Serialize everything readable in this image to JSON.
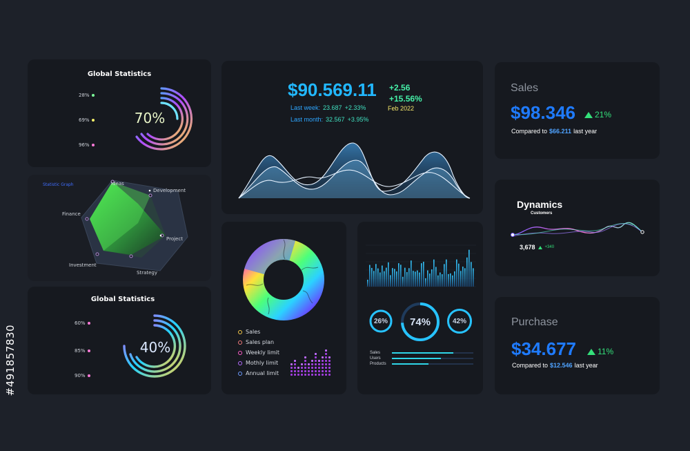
{
  "watermark_id": "#491857830",
  "global_stats_1": {
    "title": "Global Statistics",
    "percent": "70%",
    "legend": [
      {
        "label": "28%",
        "color": "#7dff9a"
      },
      {
        "label": "69%",
        "color": "#f4f06a"
      },
      {
        "label": "96%",
        "color": "#ff7ad9"
      }
    ]
  },
  "radar": {
    "title": "Statistic Graph",
    "axes": [
      "Ideas",
      "Development",
      "Project",
      "Strategy",
      "Investment",
      "Finance"
    ]
  },
  "global_stats_2": {
    "title": "Global Statistics",
    "percent": "40%",
    "legend": [
      {
        "label": "60%",
        "color": "#ff7ad9"
      },
      {
        "label": "85%",
        "color": "#ff7ad9"
      },
      {
        "label": "90%",
        "color": "#ff7ad9"
      }
    ]
  },
  "wave": {
    "amount": "$90.569.11",
    "change_1": "+2.56",
    "change_2": "+15.56%",
    "date": "Feb 2022",
    "last_week_label": "Last week:",
    "last_week_value": "23.687",
    "last_week_change": "+2.33%",
    "last_month_label": "Last month:",
    "last_month_value": "32.567",
    "last_month_change": "+3.95%"
  },
  "donut_card": {
    "legend": [
      {
        "label": "Sales",
        "color": "#f7c948"
      },
      {
        "label": "Sales plan",
        "color": "#f47c7c"
      },
      {
        "label": "Weekly limit",
        "color": "#ff5cc8"
      },
      {
        "label": "Mothly limit",
        "color": "#b56cff"
      },
      {
        "label": "Annual limit",
        "color": "#6c9bff"
      }
    ]
  },
  "bars_card": {
    "gauges": [
      {
        "label": "26%",
        "value": 0.26
      },
      {
        "label": "74%",
        "value": 0.74
      },
      {
        "label": "42%",
        "value": 0.42
      }
    ],
    "rows": [
      {
        "label": "Sales",
        "value": 0.75
      },
      {
        "label": "Users",
        "value": 0.6
      },
      {
        "label": "Products",
        "value": 0.45
      }
    ]
  },
  "sales": {
    "title": "Sales",
    "amount": "$98.346",
    "change": "21%",
    "compare_prefix": "Compared to",
    "compare_value": "$66.211",
    "compare_suffix": "last year"
  },
  "dynamics": {
    "title": "Dynamics",
    "subtitle": "Customers",
    "value": "3,678",
    "change": "+340"
  },
  "purchase": {
    "title": "Purchase",
    "amount": "$34.677",
    "change": "11%",
    "compare_prefix": "Compared to",
    "compare_value": "$12.546",
    "compare_suffix": "last year"
  },
  "colors": {
    "accent_blue": "#1f7bff",
    "accent_cyan": "#27c3ff",
    "green": "#34e07a",
    "card_bg": "#16191f",
    "page_bg": "#1d2129"
  }
}
